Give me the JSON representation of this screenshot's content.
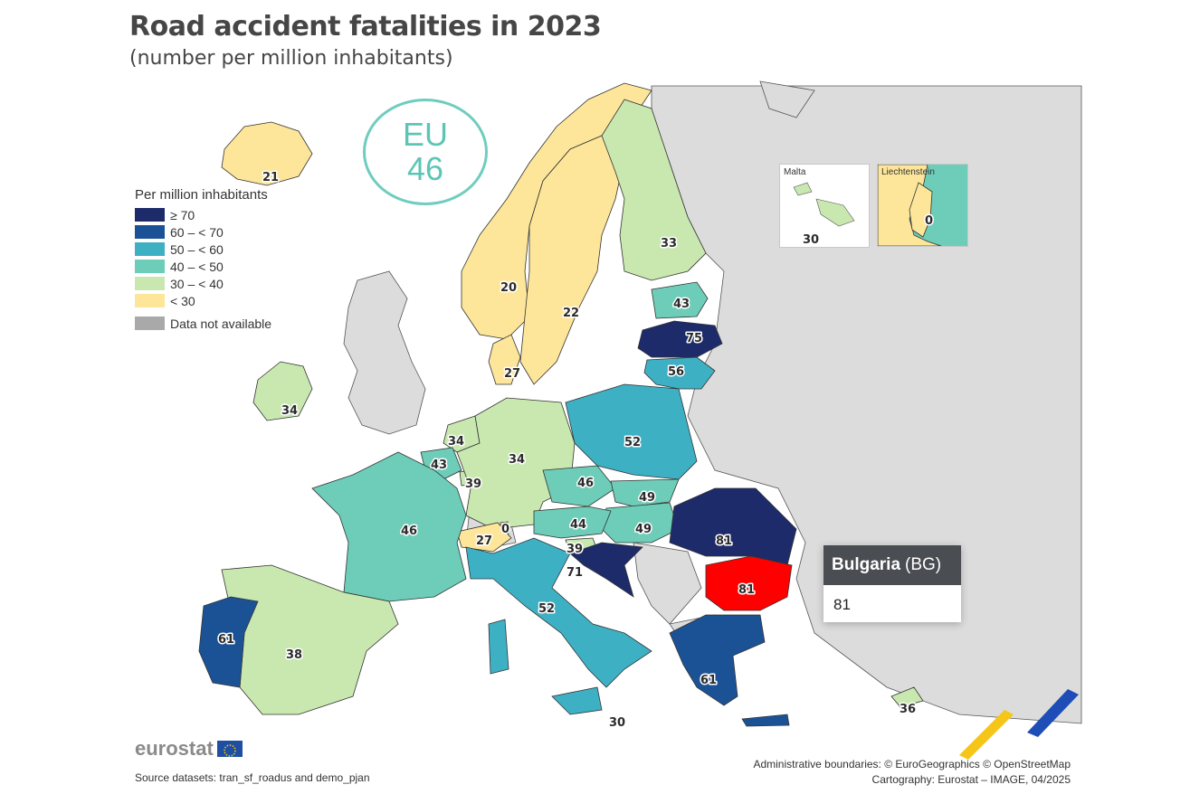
{
  "title": "Road accident fatalities in 2023",
  "subtitle": "(number per million inhabitants)",
  "eu_badge": {
    "line1": "EU",
    "line2": "46"
  },
  "legend": {
    "title": "Per million inhabitants",
    "classes": [
      {
        "label": "≥ 70",
        "color": "#1d2b6b"
      },
      {
        "label": "60 – < 70",
        "color": "#1b5296"
      },
      {
        "label": "50 – < 60",
        "color": "#3eb0c4"
      },
      {
        "label": "40 – < 50",
        "color": "#6dcdb8"
      },
      {
        "label": "30 – < 40",
        "color": "#c9e8b0"
      },
      {
        "label": "< 30",
        "color": "#fde69a"
      }
    ],
    "not_available": {
      "label": "Data not available",
      "color": "#a9a9a9"
    }
  },
  "values": {
    "iceland": "21",
    "norway": "20",
    "sweden": "22",
    "finland": "33",
    "estonia": "43",
    "latvia": "75",
    "lithuania": "56",
    "denmark": "27",
    "ireland": "34",
    "netherlands": "34",
    "belgium": "43",
    "luxembourg": "39",
    "germany": "34",
    "poland": "52",
    "czechia": "46",
    "slovakia": "49",
    "hungary": "49",
    "austria": "44",
    "liechtenstein_map": "0",
    "switzerland": "27",
    "slovenia": "39",
    "croatia": "71",
    "romania": "81",
    "bulgaria": "81",
    "france": "46",
    "italy": "52",
    "spain": "38",
    "portugal": "61",
    "greece": "61",
    "malta": "30",
    "cyprus": "36"
  },
  "insets": {
    "malta": {
      "label": "Malta",
      "value": "30"
    },
    "liechtenstein": {
      "label": "Liechtenstein",
      "value": "0"
    }
  },
  "tooltip": {
    "name": "Bulgaria",
    "code": "(BG)",
    "value": "81"
  },
  "brand": "eurostat",
  "source": "Source datasets: tran_sf_roadus and demo_pjan",
  "credits": {
    "line1": "Administrative boundaries: © EuroGeographics © OpenStreetMap",
    "line2": "Cartography: Eurostat – IMAGE, 04/2025"
  },
  "highlight_color": "#ff0000",
  "colors": {
    "water": "#ffffff",
    "non_eu_land": "#dcdcdc",
    "border": "#333333"
  }
}
